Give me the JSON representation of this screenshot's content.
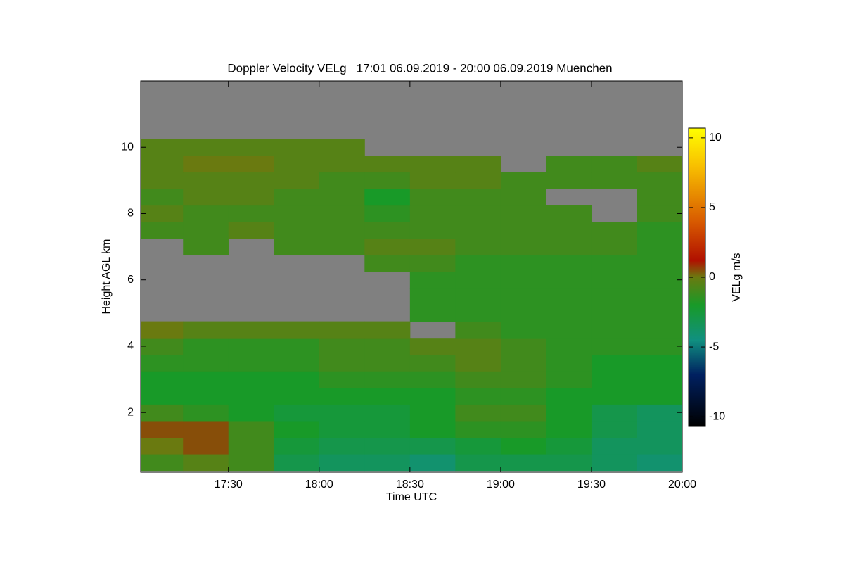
{
  "chart_data": {
    "type": "heatmap",
    "title": "Doppler Velocity VELg   17:01 06.09.2019 - 20:00 06.09.2019 Muenchen",
    "xlabel": "Time UTC",
    "ylabel": "Height AGL km",
    "colorbar_label": "VELg m/s",
    "xlim": [
      17.0167,
      20
    ],
    "xticks": [
      {
        "value": 17.5,
        "label": "17:30"
      },
      {
        "value": 18,
        "label": "18:00"
      },
      {
        "value": 18.5,
        "label": "18:30"
      },
      {
        "value": 19,
        "label": "19:00"
      },
      {
        "value": 19.5,
        "label": "19:30"
      },
      {
        "value": 20,
        "label": "20:00"
      }
    ],
    "ylim": [
      0.2,
      12
    ],
    "yticks": [
      2,
      4,
      6,
      8,
      10
    ],
    "zlim": [
      -10.7,
      10.7
    ],
    "zticks": [
      -10,
      -5,
      0,
      5,
      10
    ],
    "null_color": "#808080",
    "colormap": [
      {
        "value": -10.7,
        "color": "#000000"
      },
      {
        "value": -7,
        "color": "#002060"
      },
      {
        "value": -4.5,
        "color": "#109080"
      },
      {
        "value": -2,
        "color": "#189a28"
      },
      {
        "value": 0,
        "color": "#6a7a10"
      },
      {
        "value": 1.2,
        "color": "#b01000"
      },
      {
        "value": 4,
        "color": "#d85a00"
      },
      {
        "value": 8,
        "color": "#f8c000"
      },
      {
        "value": 10.7,
        "color": "#ffff00"
      }
    ],
    "x": [
      17.125,
      17.375,
      17.625,
      17.875,
      18.125,
      18.375,
      18.625,
      18.875,
      19.125,
      19.375,
      19.625,
      19.875
    ],
    "y": [
      0.5,
      1,
      1.5,
      2,
      2.5,
      3,
      3.5,
      4,
      4.5,
      5,
      5.5,
      6,
      6.5,
      7,
      7.5,
      8,
      8.5,
      9,
      9.5,
      10,
      10.5,
      11,
      11.5
    ],
    "z": [
      [
        -1,
        -0.5,
        -1,
        -3,
        -3.5,
        -3.5,
        -4,
        -3,
        -3,
        -3,
        -3.5,
        -4
      ],
      [
        0,
        0.5,
        -1,
        -2.5,
        -3,
        -3,
        -3,
        -2.5,
        -2,
        -2.5,
        -3.5,
        -3.5
      ],
      [
        0.5,
        0.5,
        -1,
        -2,
        -2.5,
        -2.5,
        -2,
        -1.5,
        -1.5,
        -2,
        -3,
        -3.5
      ],
      [
        -1,
        -1.5,
        -2,
        -2.5,
        -2.5,
        -2.5,
        -2,
        -1,
        -1,
        -2,
        -3,
        -3.5
      ],
      [
        -2,
        -2,
        -2,
        -2,
        -2,
        -2,
        -2,
        -1.5,
        -1.5,
        -2,
        -2,
        -2
      ],
      [
        -2,
        -2,
        -2,
        -2,
        -1.5,
        -1.5,
        -1.5,
        -1,
        -1,
        -1.5,
        -2,
        -2
      ],
      [
        -1.5,
        -1.5,
        -1.5,
        -1.5,
        -1,
        -1,
        -1,
        -0.5,
        -1,
        -1.5,
        -2,
        -2
      ],
      [
        -1,
        -1.5,
        -1.5,
        -1.5,
        -1,
        -1,
        -0.5,
        -0.5,
        -1,
        -1.5,
        -1.5,
        -1.5
      ],
      [
        0,
        -0.5,
        -0.5,
        -0.5,
        -0.5,
        -0.5,
        null,
        -1,
        -1.5,
        -1.5,
        -1.5,
        -1.5
      ],
      [
        null,
        null,
        null,
        null,
        null,
        null,
        -1.5,
        -1.5,
        -1.5,
        -1.5,
        -1.5,
        -1.5
      ],
      [
        null,
        null,
        null,
        null,
        null,
        null,
        -1.5,
        -1.5,
        -1.5,
        -1.5,
        -1.5,
        -1.5
      ],
      [
        null,
        null,
        null,
        null,
        null,
        null,
        -1.5,
        -1.5,
        -1.5,
        -1.5,
        -1.5,
        -1.5
      ],
      [
        null,
        null,
        null,
        null,
        null,
        -1,
        -1,
        -1.5,
        -1.5,
        -1.5,
        -1.5,
        -1.5
      ],
      [
        null,
        -1,
        null,
        -1,
        -1,
        -0.5,
        -0.5,
        -1,
        -1,
        -1,
        -1,
        -1.5
      ],
      [
        -1,
        -1,
        -0.5,
        -1,
        -1,
        -1,
        -1,
        -1,
        -1,
        -1,
        -1,
        -1.5
      ],
      [
        -0.5,
        -1,
        -1,
        -1,
        -1,
        -1.5,
        -1,
        -1,
        -1,
        -1,
        null,
        -1
      ],
      [
        -1,
        -0.5,
        -0.5,
        -1,
        -1,
        -2,
        -1,
        -1,
        -1,
        null,
        null,
        -1
      ],
      [
        -0.5,
        -0.5,
        -0.5,
        -0.5,
        -1,
        -1,
        -0.5,
        -0.5,
        -1,
        -1,
        -1,
        -1
      ],
      [
        -0.5,
        0,
        0,
        -0.5,
        -0.5,
        -0.5,
        -0.5,
        -0.5,
        null,
        -1,
        -1,
        -0.5
      ],
      [
        -0.5,
        -0.5,
        -0.5,
        -0.5,
        -0.5,
        null,
        null,
        null,
        null,
        null,
        null,
        null
      ],
      [
        null,
        null,
        null,
        null,
        null,
        null,
        null,
        null,
        null,
        null,
        null,
        null
      ],
      [
        null,
        null,
        null,
        null,
        null,
        null,
        null,
        null,
        null,
        null,
        null,
        null
      ],
      [
        null,
        null,
        null,
        null,
        null,
        null,
        null,
        null,
        null,
        null,
        null,
        null
      ]
    ]
  }
}
